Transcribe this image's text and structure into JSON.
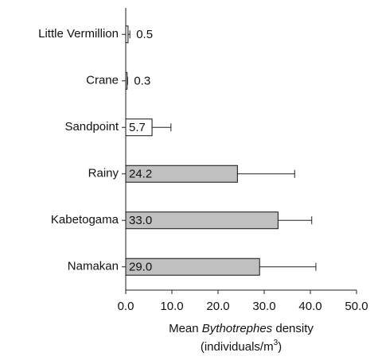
{
  "chart_data": {
    "type": "bar",
    "orientation": "horizontal",
    "categories": [
      "Little Vermillion",
      "Crane",
      "Sandpoint",
      "Rainy",
      "Kabetogama",
      "Namakan"
    ],
    "values": [
      0.5,
      0.3,
      5.7,
      24.2,
      33.0,
      29.0
    ],
    "value_labels": [
      "0.5",
      "0.3",
      "5.7",
      "24.2",
      "33.0",
      "29.0"
    ],
    "errors": [
      0.4,
      0.1,
      4.1,
      12.4,
      7.3,
      12.2
    ],
    "colors": [
      "#ffffff",
      "#ffffff",
      "#ffffff",
      "#c0c0c0",
      "#c0c0c0",
      "#c0c0c0"
    ],
    "xlim": [
      0,
      50
    ],
    "xticks": [
      {
        "value": 0,
        "label": "0.0"
      },
      {
        "value": 10,
        "label": "10.0"
      },
      {
        "value": 20,
        "label": "20.0"
      },
      {
        "value": 30,
        "label": "30.0"
      },
      {
        "value": 40,
        "label": "40.0"
      },
      {
        "value": 50,
        "label": "50.0"
      }
    ],
    "x_label": [
      "Mean ",
      "Bythotrephes",
      " density"
    ],
    "x_label_line2": [
      "(individuals/m",
      "3",
      ")"
    ]
  }
}
